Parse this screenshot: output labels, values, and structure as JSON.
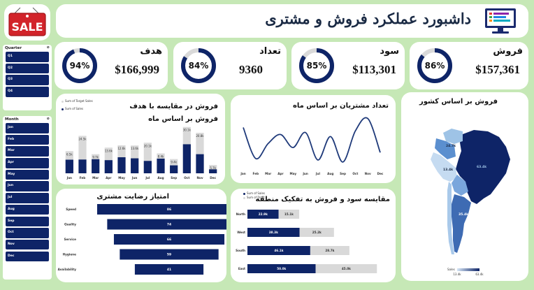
{
  "colors": {
    "navy": "#0e2467",
    "gray": "#d9d9d9",
    "background": "#c6e8b6",
    "card": "#ffffff"
  },
  "logo": {
    "text": "SALE",
    "icon": "sale-tag-icon"
  },
  "header": {
    "title": "داشبورد عملکرد فروش و مشتری",
    "icon": "dashboard-monitor-icon"
  },
  "kpis": [
    {
      "label": "فروش",
      "value": "$157,361",
      "percent": 86,
      "percent_label": "86%"
    },
    {
      "label": "سود",
      "value": "$113,301",
      "percent": 85,
      "percent_label": "85%"
    },
    {
      "label": "تعداد",
      "value": "9360",
      "percent": 84,
      "percent_label": "84%"
    },
    {
      "label": "هدف",
      "value": "$166,999",
      "percent": 94,
      "percent_label": "94%"
    }
  ],
  "slicers": {
    "quarter": {
      "title": "Quarter",
      "items": [
        "Q1",
        "Q2",
        "Q3",
        "Q4"
      ]
    },
    "month": {
      "title": "Month",
      "items": [
        "Jan",
        "Feb",
        "Mar",
        "Apr",
        "May",
        "Jun",
        "Jul",
        "Aug",
        "Sep",
        "Oct",
        "Nov",
        "Dec"
      ]
    }
  },
  "chart_data": [
    {
      "id": "sales_vs_target",
      "type": "bar",
      "title": "فروش در مقایسه با هدف فروش بر اساس ماه",
      "categories": [
        "Jan",
        "Feb",
        "Mar",
        "Apr",
        "May",
        "Jun",
        "Jul",
        "Aug",
        "Sep",
        "Oct",
        "Nov",
        "Dec"
      ],
      "series": [
        {
          "name": "Sum of Target Sales",
          "values": [
            14.5,
            24.5,
            12.5,
            16.8,
            18.3,
            18.2,
            20.0,
            13.0,
            9.3,
            30.3,
            26.5,
            5.4
          ]
        },
        {
          "name": "Sum of Sales",
          "values": [
            8.9,
            9.0,
            9.2,
            8.6,
            10.5,
            9.8,
            8.1,
            9.6,
            5.2,
            19.0,
            12.5,
            2.6
          ]
        }
      ],
      "data_labels": [
        "6.5k",
        "24.5k",
        "9.7k",
        "13.6k",
        "12.6k",
        "13.6k",
        "20.1k",
        "8.4k",
        "9.4k",
        "30.1k",
        "20.8k",
        "5.7k"
      ]
    },
    {
      "id": "customers_by_month",
      "type": "line",
      "title": "تعداد مشتریان بر اساس ماه",
      "categories": [
        "Jan",
        "Feb",
        "Mar",
        "Apr",
        "May",
        "Jun",
        "Jul",
        "Aug",
        "Sep",
        "Oct",
        "Nov",
        "Dec"
      ],
      "values": [
        820,
        200,
        500,
        680,
        420,
        720,
        170,
        640,
        130,
        750,
        1000,
        320
      ]
    },
    {
      "id": "sales_by_country",
      "type": "map",
      "title": "فروش بر اساس کشور",
      "labels": [
        "24.7k",
        "13.4k",
        "63.4k",
        "35.4k"
      ],
      "legend_title": "Sales",
      "legend_range": [
        "13.4k",
        "63.4k"
      ]
    },
    {
      "id": "satisfaction",
      "type": "bar",
      "orientation": "horizontal",
      "title": "امتیاز رضایت مشتری",
      "categories": [
        "Speed",
        "Quality",
        "Service",
        "Hygiene",
        "Availability"
      ],
      "values": [
        86,
        74,
        66,
        59,
        41
      ]
    },
    {
      "id": "profit_sales_region",
      "type": "bar",
      "orientation": "horizontal",
      "title": "مقایسه سود و فروش به تفکیک منطقه",
      "categories": [
        "North",
        "West",
        "South",
        "East"
      ],
      "series": [
        {
          "name": "Sum of Sales",
          "values": [
            22.9,
            38.3,
            46.1,
            50.0
          ]
        },
        {
          "name": "Sum of Profit",
          "values": [
            15.1,
            25.2,
            28.7,
            45.0
          ]
        }
      ],
      "data_labels_sales": [
        "22.9k",
        "38.3k",
        "46.1k",
        "50.0k"
      ],
      "data_labels_profit": [
        "15.1k",
        "25.2k",
        "28.7k",
        "45.0k"
      ]
    }
  ]
}
